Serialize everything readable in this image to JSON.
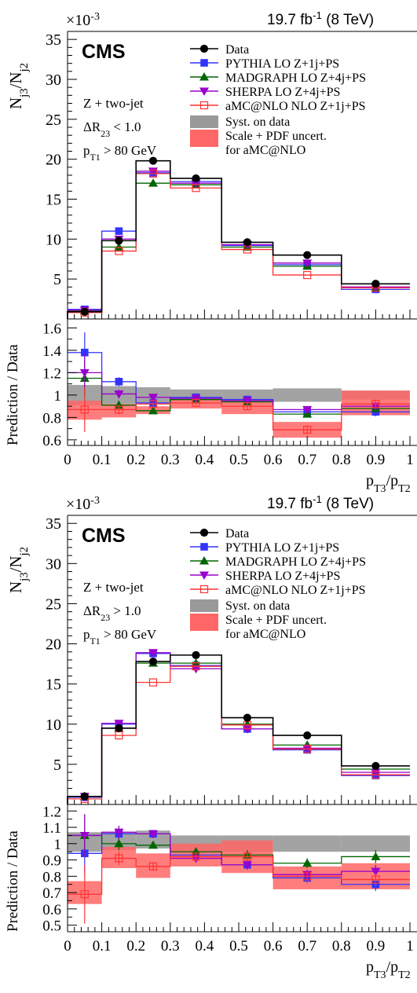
{
  "chart_data": [
    {
      "type": "step",
      "panel": "top",
      "lumi_label": "19.7 fb",
      "lumi_exp": "-1",
      "lumi_energy": "(8 TeV)",
      "experiment": "CMS",
      "exponent_label": "×10",
      "exponent_value": "-3",
      "ylabel": "N_j3/N_j2",
      "selection": [
        "Z + two-jet",
        "ΔR23 < 1.0",
        "pT1 > 80 GeV"
      ],
      "legend": [
        {
          "label": "Data",
          "color": "#000000",
          "marker": "circle"
        },
        {
          "label": "PYTHIA LO Z+1j+PS",
          "color": "#3333ff",
          "marker": "square"
        },
        {
          "label": "MADGRAPH LO Z+4j+PS",
          "color": "#006600",
          "marker": "triangle-up"
        },
        {
          "label": "SHERPA LO Z+4j+PS",
          "color": "#9900cc",
          "marker": "triangle-down"
        },
        {
          "label": "aMC@NLO NLO Z+1j+PS",
          "color": "#ff3333",
          "marker": "open-square"
        },
        {
          "label": "Syst. on data",
          "color": "#999999",
          "marker": "band"
        },
        {
          "label": "Scale + PDF uncert.",
          "label2": "for aMC@NLO",
          "color": "#ff6666",
          "marker": "band"
        }
      ],
      "bin_edges": [
        0,
        0.1,
        0.2,
        0.3,
        0.45,
        0.6,
        0.8,
        1.0
      ],
      "ylim": [
        0,
        36
      ],
      "yticks": [
        5,
        10,
        15,
        20,
        25,
        30,
        35
      ],
      "series": [
        {
          "name": "Data",
          "values": [
            0.9,
            9.8,
            19.8,
            17.6,
            9.6,
            8.0,
            4.4
          ]
        },
        {
          "name": "PYTHIA LO Z+1j+PS",
          "values": [
            1.2,
            11.0,
            18.3,
            17.2,
            9.2,
            6.8,
            3.7
          ]
        },
        {
          "name": "MADGRAPH LO Z+4j+PS",
          "values": [
            1.0,
            9.0,
            17.0,
            16.8,
            9.0,
            6.6,
            3.9
          ]
        },
        {
          "name": "SHERPA LO Z+4j+PS",
          "values": [
            1.1,
            10.0,
            18.5,
            17.0,
            9.3,
            7.0,
            4.0
          ]
        },
        {
          "name": "aMC@NLO NLO Z+1j+PS",
          "values": [
            0.8,
            8.5,
            18.2,
            16.4,
            8.7,
            5.5,
            3.9
          ]
        }
      ]
    },
    {
      "type": "step",
      "panel": "top-ratio",
      "ylabel": "Prediction / Data",
      "xlabel": "pT3/pT2",
      "ylim": [
        0.55,
        1.68
      ],
      "yticks": [
        0.6,
        0.8,
        1,
        1.2,
        1.4,
        1.6
      ],
      "xticks": [
        "0",
        "0.1",
        "0.2",
        "0.3",
        "0.4",
        "0.5",
        "0.6",
        "0.7",
        "0.8",
        "0.9",
        "1"
      ],
      "bin_edges": [
        0,
        0.1,
        0.2,
        0.3,
        0.45,
        0.6,
        0.8,
        1.0
      ],
      "syst_band": [
        [
          0.91,
          1.09
        ],
        [
          0.92,
          1.08
        ],
        [
          0.93,
          1.07
        ],
        [
          0.95,
          1.05
        ],
        [
          0.95,
          1.05
        ],
        [
          0.94,
          1.06
        ],
        [
          0.96,
          1.04
        ]
      ],
      "amc_band": [
        [
          0.78,
          0.95
        ],
        [
          0.8,
          0.92
        ],
        [
          0.83,
          0.9
        ],
        [
          0.88,
          0.96
        ],
        [
          0.83,
          0.95
        ],
        [
          0.62,
          0.76
        ],
        [
          0.82,
          1.04
        ]
      ],
      "series": [
        {
          "name": "PYTHIA LO Z+1j+PS",
          "values": [
            1.38,
            1.12,
            0.93,
            0.98,
            0.96,
            0.85,
            0.85
          ],
          "errors": [
            0.18,
            0.04,
            0.02,
            0.02,
            0.03,
            0.03,
            0.04
          ]
        },
        {
          "name": "MADGRAPH LO Z+4j+PS",
          "values": [
            1.15,
            0.91,
            0.86,
            0.96,
            0.94,
            0.83,
            0.88
          ],
          "errors": [
            0.16,
            0.04,
            0.02,
            0.02,
            0.03,
            0.03,
            0.04
          ]
        },
        {
          "name": "SHERPA LO Z+4j+PS",
          "values": [
            1.2,
            1.01,
            0.98,
            0.97,
            0.95,
            0.87,
            0.9
          ],
          "errors": [
            0.17,
            0.04,
            0.02,
            0.02,
            0.03,
            0.03,
            0.04
          ]
        },
        {
          "name": "aMC@NLO NLO Z+1j+PS",
          "values": [
            0.87,
            0.87,
            0.92,
            0.93,
            0.9,
            0.69,
            0.92
          ],
          "errors": [
            0.2,
            0.04,
            0.02,
            0.02,
            0.03,
            0.03,
            0.04
          ]
        }
      ]
    },
    {
      "type": "step",
      "panel": "bottom",
      "lumi_label": "19.7 fb",
      "lumi_exp": "-1",
      "lumi_energy": "(8 TeV)",
      "experiment": "CMS",
      "exponent_label": "×10",
      "exponent_value": "-3",
      "ylabel": "N_j3/N_j2",
      "selection": [
        "Z + two-jet",
        "ΔR23 > 1.0",
        "pT1 > 80 GeV"
      ],
      "legend": [
        {
          "label": "Data",
          "color": "#000000",
          "marker": "circle"
        },
        {
          "label": "PYTHIA LO Z+1j+PS",
          "color": "#3333ff",
          "marker": "square"
        },
        {
          "label": "MADGRAPH LO Z+4j+PS",
          "color": "#006600",
          "marker": "triangle-up"
        },
        {
          "label": "SHERPA LO Z+4j+PS",
          "color": "#9900cc",
          "marker": "triangle-down"
        },
        {
          "label": "aMC@NLO NLO Z+1j+PS",
          "color": "#ff3333",
          "marker": "open-square"
        },
        {
          "label": "Syst. on data",
          "color": "#999999",
          "marker": "band"
        },
        {
          "label": "Scale + PDF uncert.",
          "label2": "for aMC@NLO",
          "color": "#ff6666",
          "marker": "band"
        }
      ],
      "bin_edges": [
        0,
        0.1,
        0.2,
        0.3,
        0.45,
        0.6,
        0.8,
        1.0
      ],
      "ylim": [
        0,
        36
      ],
      "yticks": [
        5,
        10,
        15,
        20,
        25,
        30,
        35
      ],
      "series": [
        {
          "name": "Data",
          "values": [
            1.0,
            9.5,
            17.8,
            18.6,
            10.8,
            8.6,
            4.8
          ]
        },
        {
          "name": "PYTHIA LO Z+1j+PS",
          "values": [
            0.9,
            10.0,
            18.8,
            17.3,
            9.4,
            6.8,
            3.6
          ]
        },
        {
          "name": "MADGRAPH LO Z+4j+PS",
          "values": [
            1.0,
            9.5,
            17.6,
            17.6,
            10.0,
            7.4,
            4.4
          ]
        },
        {
          "name": "SHERPA LO Z+4j+PS",
          "values": [
            1.0,
            10.1,
            18.9,
            16.9,
            9.4,
            7.0,
            4.0
          ]
        },
        {
          "name": "aMC@NLO NLO Z+1j+PS",
          "values": [
            0.7,
            8.6,
            15.2,
            17.2,
            9.9,
            6.9,
            3.7
          ]
        }
      ]
    },
    {
      "type": "step",
      "panel": "bottom-ratio",
      "ylabel": "Prediction / Data",
      "xlabel": "pT3/pT2",
      "ylim": [
        0.46,
        1.24
      ],
      "yticks": [
        0.5,
        0.6,
        0.7,
        0.8,
        0.9,
        1,
        1.1,
        1.2
      ],
      "xticks": [
        "0",
        "0.1",
        "0.2",
        "0.3",
        "0.4",
        "0.5",
        "0.6",
        "0.7",
        "0.8",
        "0.9",
        "1"
      ],
      "bin_edges": [
        0,
        0.1,
        0.2,
        0.3,
        0.45,
        0.6,
        0.8,
        1.0
      ],
      "syst_band": [
        [
          0.95,
          1.07
        ],
        [
          0.96,
          1.07
        ],
        [
          0.97,
          1.08
        ],
        [
          0.95,
          1.05
        ],
        [
          0.95,
          1.05
        ],
        [
          0.95,
          1.05
        ],
        [
          0.95,
          1.05
        ]
      ],
      "amc_band": [
        [
          0.63,
          0.77
        ],
        [
          0.85,
          0.98
        ],
        [
          0.79,
          0.94
        ],
        [
          0.86,
          1.0
        ],
        [
          0.82,
          1.02
        ],
        [
          0.72,
          0.86
        ],
        [
          0.72,
          0.88
        ]
      ],
      "series": [
        {
          "name": "PYTHIA LO Z+1j+PS",
          "values": [
            0.94,
            1.06,
            1.06,
            0.93,
            0.87,
            0.79,
            0.75
          ],
          "errors": [
            0.12,
            0.04,
            0.02,
            0.02,
            0.03,
            0.03,
            0.04
          ]
        },
        {
          "name": "MADGRAPH LO Z+4j+PS",
          "values": [
            1.05,
            1.0,
            0.99,
            0.95,
            0.93,
            0.88,
            0.92
          ],
          "errors": [
            0.13,
            0.04,
            0.02,
            0.02,
            0.03,
            0.03,
            0.04
          ]
        },
        {
          "name": "SHERPA LO Z+4j+PS",
          "values": [
            1.05,
            1.07,
            1.06,
            0.91,
            0.87,
            0.81,
            0.83
          ],
          "errors": [
            0.13,
            0.04,
            0.02,
            0.02,
            0.03,
            0.03,
            0.04
          ]
        },
        {
          "name": "aMC@NLO NLO Z+1j+PS",
          "values": [
            0.69,
            0.91,
            0.86,
            0.92,
            0.92,
            0.8,
            0.78
          ],
          "errors": [
            0.18,
            0.04,
            0.02,
            0.02,
            0.03,
            0.03,
            0.04
          ]
        }
      ]
    }
  ]
}
